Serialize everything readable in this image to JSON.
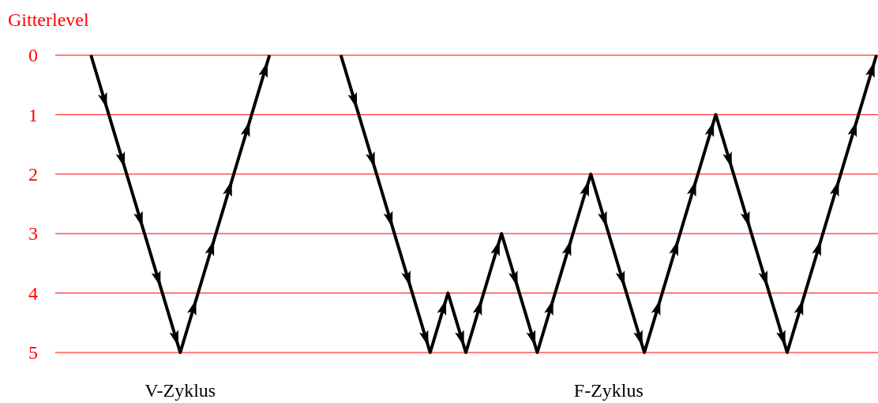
{
  "chart_data": {
    "type": "line",
    "ylabel": "Gitterlevel",
    "categories": [
      null,
      null,
      null,
      null,
      null,
      null,
      null,
      null,
      null,
      null,
      null,
      null,
      null,
      null,
      null,
      null,
      null,
      null,
      null,
      null,
      null,
      null,
      null,
      null,
      null,
      null,
      null,
      null,
      null,
      null,
      null,
      null,
      null,
      null,
      null,
      null,
      null,
      null,
      null,
      null,
      null,
      null,
      null,
      null,
      null,
      null,
      null
    ],
    "series": [
      {
        "name": "V-Zyklus",
        "color": "#000000",
        "values": [
          null,
          null,
          0,
          1,
          2,
          3,
          4,
          5,
          4,
          3,
          2,
          1,
          0,
          null,
          null,
          null,
          null,
          null,
          null,
          null,
          null,
          null,
          null,
          null,
          null,
          null,
          null,
          null,
          null,
          null,
          null,
          null,
          null,
          null,
          null,
          null,
          null,
          null,
          null,
          null,
          null,
          null,
          null,
          null,
          null,
          null,
          null
        ]
      },
      {
        "name": "F-Zyklus",
        "color": "#000000",
        "values": [
          null,
          null,
          null,
          null,
          null,
          null,
          null,
          null,
          null,
          null,
          null,
          null,
          null,
          null,
          null,
          null,
          0,
          1,
          2,
          3,
          4,
          5,
          4,
          5,
          4,
          3,
          4,
          5,
          4,
          3,
          2,
          3,
          4,
          5,
          4,
          3,
          2,
          1,
          2,
          3,
          4,
          5,
          4,
          3,
          2,
          1,
          0
        ]
      }
    ],
    "ylim": [
      5,
      0
    ],
    "yticks": [
      0,
      1,
      2,
      3,
      4,
      5
    ],
    "grid": "y",
    "tick_labels": "y"
  }
}
